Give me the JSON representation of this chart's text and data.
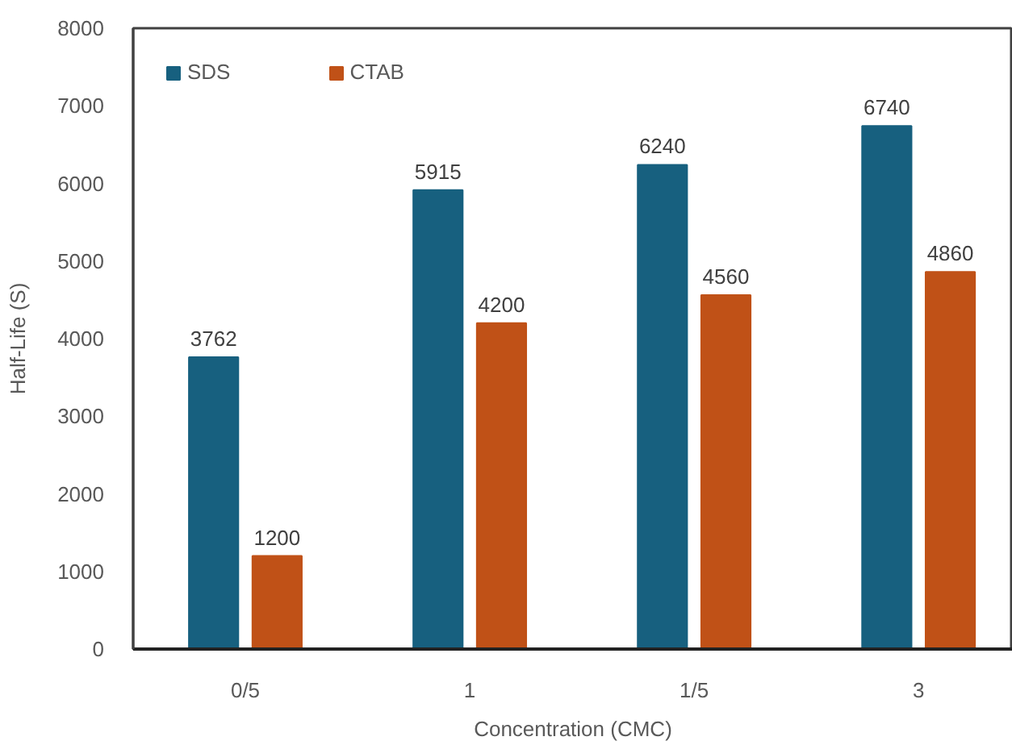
{
  "chart_data": {
    "type": "bar",
    "xlabel": "Concentration (CMC)",
    "ylabel": "Half-Life (S)",
    "categories": [
      "0/5",
      "1",
      "1/5",
      "3"
    ],
    "series": [
      {
        "name": "SDS",
        "color": "#17607f",
        "values": [
          3762,
          5915,
          6240,
          6740
        ]
      },
      {
        "name": "CTAB",
        "color": "#c05117",
        "values": [
          1200,
          4200,
          4560,
          4860
        ]
      }
    ],
    "ylim": [
      0,
      8000
    ],
    "yticks": [
      0,
      1000,
      2000,
      3000,
      4000,
      5000,
      6000,
      7000,
      8000
    ],
    "grid": false,
    "legend": "top left",
    "data_labels": true
  }
}
